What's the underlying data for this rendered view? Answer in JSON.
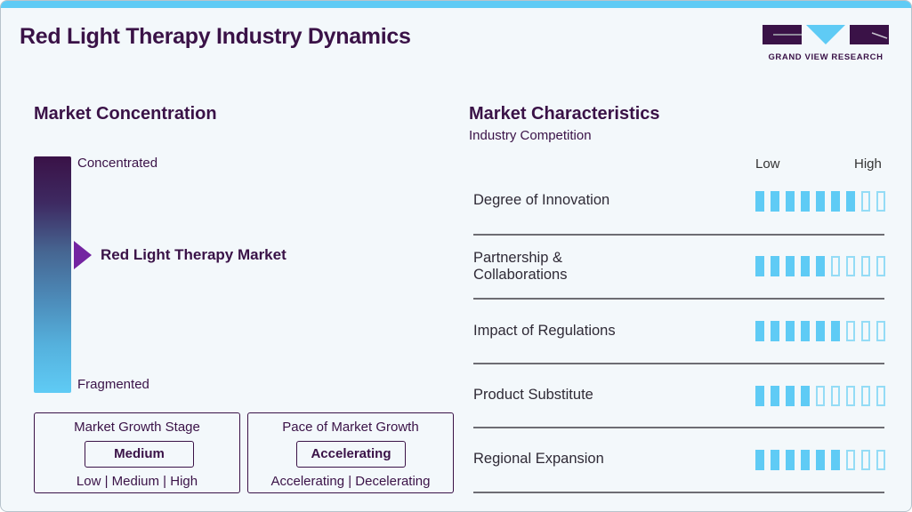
{
  "header": {
    "title": "Red Light Therapy Industry Dynamics",
    "logo_text": "GRAND VIEW RESEARCH"
  },
  "colors": {
    "primary": "#3a1247",
    "accent": "#5fcbf5",
    "pointer": "#7324a1",
    "background": "#f3f8fb"
  },
  "market_concentration": {
    "title": "Market Concentration",
    "top_label": "Concentrated",
    "bottom_label": "Fragmented",
    "marker_label": "Red Light Therapy Market",
    "marker_position_pct": 42
  },
  "growth_stage": {
    "title": "Market Growth Stage",
    "value": "Medium",
    "options": "Low | Medium | High"
  },
  "growth_pace": {
    "title": "Pace of Market Growth",
    "value": "Accelerating",
    "options": "Accelerating | Decelerating"
  },
  "characteristics": {
    "title": "Market Characteristics",
    "subtitle": "Industry Competition",
    "low_label": "Low",
    "high_label": "High",
    "scale_max": 9,
    "rows": [
      {
        "label": "Degree of Innovation",
        "filled": 7
      },
      {
        "label": "Partnership & Collaborations",
        "line1": "Partnership &",
        "line2": "Collaborations",
        "filled": 5
      },
      {
        "label": "Impact of Regulations",
        "filled": 6
      },
      {
        "label": "Product Substitute",
        "filled": 4
      },
      {
        "label": "Regional Expansion",
        "filled": 6
      }
    ]
  }
}
